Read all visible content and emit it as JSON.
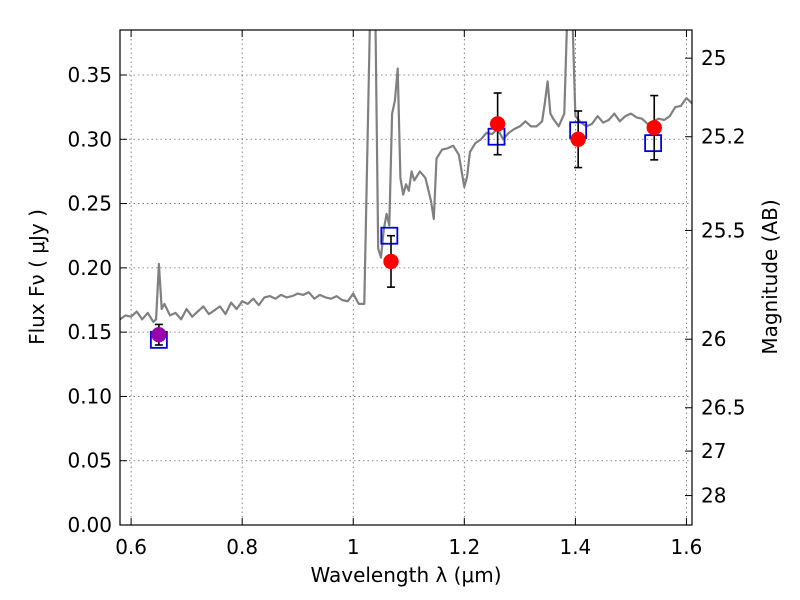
{
  "chart_data": {
    "type": "scatter",
    "xlabel": "Wavelength  λ (μm)",
    "ylabel": "Flux  Fν  ( μJy )",
    "ylabel_right": "Magnitude (AB)",
    "xlim": [
      0.58,
      1.61
    ],
    "ylim": [
      0.0,
      0.385
    ],
    "x_ticks": [
      0.6,
      0.8,
      1.0,
      1.2,
      1.4,
      1.6
    ],
    "x_tick_labels": [
      "0.6",
      "0.8",
      "1",
      "1.2",
      "1.4",
      "1.6"
    ],
    "y_ticks": [
      0.0,
      0.05,
      0.1,
      0.15,
      0.2,
      0.25,
      0.3,
      0.35
    ],
    "y_tick_labels": [
      "0.00",
      "0.05",
      "0.10",
      "0.15",
      "0.20",
      "0.25",
      "0.30",
      "0.35"
    ],
    "right_ticks": [
      {
        "label": "25",
        "flux": 0.3631
      },
      {
        "label": "25.2",
        "flux": 0.302
      },
      {
        "label": "25.5",
        "flux": 0.2291
      },
      {
        "label": "26",
        "flux": 0.1445
      },
      {
        "label": "26.5",
        "flux": 0.0912
      },
      {
        "label": "27",
        "flux": 0.0575
      },
      {
        "label": "28",
        "flux": 0.0229
      }
    ],
    "grid": true,
    "series": [
      {
        "kind": "line",
        "color": "#808080",
        "x": [
          0.58,
          0.59,
          0.6,
          0.61,
          0.62,
          0.63,
          0.64,
          0.645,
          0.65,
          0.655,
          0.66,
          0.67,
          0.68,
          0.69,
          0.7,
          0.71,
          0.72,
          0.73,
          0.74,
          0.75,
          0.76,
          0.77,
          0.78,
          0.79,
          0.8,
          0.81,
          0.82,
          0.83,
          0.84,
          0.85,
          0.86,
          0.87,
          0.88,
          0.89,
          0.9,
          0.91,
          0.92,
          0.93,
          0.94,
          0.95,
          0.96,
          0.97,
          0.98,
          0.99,
          1.0,
          1.01,
          1.02,
          1.03,
          1.035,
          1.04,
          1.045,
          1.05,
          1.055,
          1.06,
          1.065,
          1.07,
          1.075,
          1.08,
          1.085,
          1.09,
          1.095,
          1.1,
          1.105,
          1.11,
          1.12,
          1.13,
          1.14,
          1.145,
          1.15,
          1.16,
          1.17,
          1.18,
          1.19,
          1.2,
          1.205,
          1.21,
          1.22,
          1.23,
          1.24,
          1.25,
          1.26,
          1.27,
          1.28,
          1.29,
          1.3,
          1.31,
          1.32,
          1.33,
          1.34,
          1.345,
          1.35,
          1.355,
          1.36,
          1.37,
          1.38,
          1.385,
          1.39,
          1.395,
          1.4,
          1.41,
          1.42,
          1.43,
          1.44,
          1.45,
          1.46,
          1.47,
          1.48,
          1.49,
          1.5,
          1.51,
          1.52,
          1.53,
          1.54,
          1.55,
          1.56,
          1.57,
          1.58,
          1.59,
          1.6,
          1.61
        ],
        "y": [
          0.16,
          0.163,
          0.162,
          0.166,
          0.16,
          0.165,
          0.158,
          0.16,
          0.203,
          0.168,
          0.172,
          0.163,
          0.165,
          0.16,
          0.168,
          0.162,
          0.166,
          0.17,
          0.164,
          0.167,
          0.17,
          0.164,
          0.173,
          0.168,
          0.174,
          0.172,
          0.176,
          0.171,
          0.177,
          0.178,
          0.176,
          0.179,
          0.177,
          0.178,
          0.18,
          0.179,
          0.181,
          0.176,
          0.179,
          0.177,
          0.176,
          0.178,
          0.175,
          0.174,
          0.18,
          0.172,
          0.172,
          0.39,
          0.39,
          0.39,
          0.215,
          0.208,
          0.23,
          0.242,
          0.233,
          0.32,
          0.33,
          0.355,
          0.27,
          0.257,
          0.265,
          0.26,
          0.275,
          0.268,
          0.275,
          0.27,
          0.252,
          0.238,
          0.285,
          0.292,
          0.293,
          0.295,
          0.288,
          0.263,
          0.271,
          0.29,
          0.297,
          0.3,
          0.305,
          0.304,
          0.308,
          0.3,
          0.305,
          0.308,
          0.31,
          0.314,
          0.31,
          0.31,
          0.314,
          0.328,
          0.345,
          0.32,
          0.316,
          0.31,
          0.32,
          0.39,
          0.39,
          0.39,
          0.318,
          0.313,
          0.31,
          0.312,
          0.318,
          0.313,
          0.315,
          0.32,
          0.314,
          0.318,
          0.32,
          0.317,
          0.316,
          0.312,
          0.314,
          0.316,
          0.315,
          0.318,
          0.325,
          0.326,
          0.332,
          0.328
        ]
      },
      {
        "kind": "points-squares",
        "color": "#0000dd",
        "x": [
          0.65,
          1.065,
          1.258,
          1.405,
          1.54
        ],
        "y": [
          0.144,
          0.225,
          0.302,
          0.307,
          0.297
        ]
      },
      {
        "kind": "points-errorbars",
        "color": "#ff0000",
        "x": [
          0.65,
          1.068,
          1.26,
          1.405,
          1.542
        ],
        "y": [
          0.148,
          0.205,
          0.312,
          0.3,
          0.309
        ],
        "yerr": [
          0.008,
          0.02,
          0.024,
          0.022,
          0.025
        ],
        "point_colors": [
          "#9900aa",
          "#ff0000",
          "#ff0000",
          "#ff0000",
          "#ff0000"
        ]
      }
    ]
  }
}
